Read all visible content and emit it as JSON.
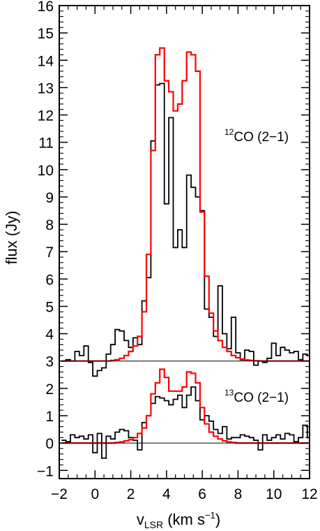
{
  "chart_data": {
    "type": "line",
    "xlabel": "v",
    "xlabel_sub": "LSR",
    "xlabel_unit_pre": " (km s",
    "xlabel_unit_sup": "−1",
    "xlabel_unit_post": ")",
    "ylabel": "flux (Jy)",
    "xlim": [
      -2,
      12
    ],
    "ylim": [
      -1.3,
      16
    ],
    "x_ticks": [
      "−2",
      "0",
      "2",
      "4",
      "6",
      "8",
      "10",
      "12"
    ],
    "x_tick_values": [
      -2,
      0,
      2,
      4,
      6,
      8,
      10,
      12
    ],
    "y_ticks": [
      "−1",
      "0",
      "1",
      "2",
      "3",
      "4",
      "5",
      "6",
      "7",
      "8",
      "9",
      "10",
      "11",
      "12",
      "13",
      "14",
      "15",
      "16"
    ],
    "y_tick_values": [
      -1,
      0,
      1,
      2,
      3,
      4,
      5,
      6,
      7,
      8,
      9,
      10,
      11,
      12,
      13,
      14,
      15,
      16
    ],
    "colors": {
      "observed": "#000000",
      "model": "#ff0000",
      "baseline": "#000000"
    },
    "annotations": [
      {
        "iso": "12",
        "text": "CO (2−1)"
      },
      {
        "iso": "13",
        "text": "CO (2−1)"
      }
    ],
    "baselines": [
      3,
      0
    ],
    "bin_width": 0.25,
    "series": [
      {
        "line": "12CO (2-1)",
        "kind": "observed",
        "x": [
          -1.75,
          -1.5,
          -1.25,
          -1.0,
          -0.75,
          -0.5,
          -0.25,
          0.0,
          0.25,
          0.5,
          0.75,
          1.0,
          1.25,
          1.5,
          1.75,
          2.0,
          2.25,
          2.5,
          2.75,
          3.0,
          3.25,
          3.5,
          3.75,
          4.0,
          4.25,
          4.5,
          4.75,
          5.0,
          5.25,
          5.5,
          5.75,
          6.0,
          6.25,
          6.5,
          6.75,
          7.0,
          7.25,
          7.5,
          7.75,
          8.0,
          8.25,
          8.5,
          8.75,
          9.0,
          9.25,
          9.5,
          9.75,
          10.0,
          10.25,
          10.5,
          10.75,
          11.0,
          11.25,
          11.5,
          11.75,
          12.0
        ],
        "y": [
          3.0,
          3.05,
          3.0,
          3.35,
          3.2,
          3.55,
          2.95,
          2.45,
          2.65,
          2.75,
          3.25,
          3.6,
          4.15,
          4.1,
          3.75,
          3.5,
          3.85,
          3.6,
          5.2,
          6.05,
          11.05,
          13.1,
          13.15,
          8.75,
          11.9,
          7.15,
          7.8,
          7.15,
          9.8,
          9.35,
          9.0,
          8.5,
          4.9,
          4.6,
          3.9,
          5.75,
          4.0,
          3.45,
          4.6,
          3.3,
          3.05,
          3.4,
          3.35,
          2.85,
          3.0,
          2.95,
          3.1,
          3.65,
          3.2,
          3.5,
          3.4,
          3.3,
          3.35,
          3.05,
          3.25,
          3.2
        ]
      },
      {
        "line": "12CO (2-1)",
        "kind": "model",
        "x": [
          -1.75,
          -1.5,
          -1.25,
          -1.0,
          -0.75,
          -0.5,
          -0.25,
          0.0,
          0.25,
          0.5,
          0.75,
          1.0,
          1.25,
          1.5,
          1.75,
          2.0,
          2.25,
          2.5,
          2.75,
          3.0,
          3.25,
          3.5,
          3.75,
          4.0,
          4.25,
          4.5,
          4.75,
          5.0,
          5.25,
          5.5,
          5.75,
          6.0,
          6.25,
          6.5,
          6.75,
          7.0,
          7.25,
          7.5,
          7.75,
          8.0,
          8.25,
          8.5,
          8.75,
          9.0,
          9.25,
          9.5,
          9.75,
          10.0,
          10.25,
          10.5,
          10.75,
          11.0,
          11.25,
          11.5,
          11.75,
          12.0
        ],
        "y": [
          3.0,
          3.0,
          3.0,
          3.0,
          3.0,
          3.0,
          3.0,
          3.0,
          3.0,
          3.0,
          3.0,
          3.02,
          3.05,
          3.1,
          3.2,
          3.35,
          3.55,
          3.9,
          4.8,
          6.9,
          10.7,
          14.2,
          14.45,
          13.25,
          12.85,
          12.15,
          12.4,
          13.25,
          14.3,
          14.2,
          13.6,
          8.45,
          6.1,
          4.75,
          4.1,
          3.75,
          3.5,
          3.35,
          3.2,
          3.12,
          3.07,
          3.04,
          3.02,
          3.01,
          3.0,
          3.0,
          3.0,
          3.0,
          3.0,
          3.0,
          3.0,
          3.0,
          3.0,
          3.0,
          3.0,
          3.0
        ]
      },
      {
        "line": "13CO (2-1)",
        "kind": "observed",
        "x": [
          -1.75,
          -1.5,
          -1.25,
          -1.0,
          -0.75,
          -0.5,
          -0.25,
          0.0,
          0.25,
          0.5,
          0.75,
          1.0,
          1.25,
          1.5,
          1.75,
          2.0,
          2.25,
          2.5,
          2.75,
          3.0,
          3.25,
          3.5,
          3.75,
          4.0,
          4.25,
          4.5,
          4.75,
          5.0,
          5.25,
          5.5,
          5.75,
          6.0,
          6.25,
          6.5,
          6.75,
          7.0,
          7.25,
          7.5,
          7.75,
          8.0,
          8.25,
          8.5,
          8.75,
          9.0,
          9.25,
          9.5,
          9.75,
          10.0,
          10.25,
          10.5,
          10.75,
          11.0,
          11.25,
          11.5,
          11.75,
          12.0
        ],
        "y": [
          0.1,
          0.05,
          0.3,
          0.2,
          0.25,
          0.15,
          0.3,
          -0.35,
          0.35,
          -0.55,
          0.25,
          0.15,
          0.4,
          0.5,
          0.45,
          0.2,
          0.1,
          -0.25,
          0.75,
          1.0,
          1.45,
          1.7,
          1.65,
          1.55,
          1.4,
          1.6,
          1.75,
          1.3,
          1.75,
          2.05,
          1.55,
          0.85,
          1.0,
          0.8,
          0.5,
          0.35,
          0.6,
          0.15,
          0.2,
          0.2,
          0.3,
          0.25,
          0.2,
          0.1,
          -0.25,
          0.3,
          0.1,
          0.2,
          0.3,
          0.15,
          0.35,
          0.3,
          0.05,
          0.2,
          0.65,
          0.2
        ]
      },
      {
        "line": "13CO (2-1)",
        "kind": "model",
        "x": [
          -1.75,
          -1.5,
          -1.25,
          -1.0,
          -0.75,
          -0.5,
          -0.25,
          0.0,
          0.25,
          0.5,
          0.75,
          1.0,
          1.25,
          1.5,
          1.75,
          2.0,
          2.25,
          2.5,
          2.75,
          3.0,
          3.25,
          3.5,
          3.75,
          4.0,
          4.25,
          4.5,
          4.75,
          5.0,
          5.25,
          5.5,
          5.75,
          6.0,
          6.25,
          6.5,
          6.75,
          7.0,
          7.25,
          7.5,
          7.75,
          8.0,
          8.25,
          8.5,
          8.75,
          9.0,
          9.25,
          9.5,
          9.75,
          10.0,
          10.25,
          10.5,
          10.75,
          11.0,
          11.25,
          11.5,
          11.75,
          12.0
        ],
        "y": [
          0.0,
          0.0,
          0.0,
          0.0,
          0.0,
          0.0,
          0.0,
          0.0,
          0.0,
          0.0,
          0.0,
          0.0,
          0.02,
          0.04,
          0.08,
          0.12,
          0.2,
          0.35,
          0.55,
          1.0,
          1.8,
          2.2,
          2.7,
          2.4,
          1.9,
          1.9,
          1.9,
          2.05,
          2.6,
          2.55,
          2.2,
          1.3,
          0.7,
          0.4,
          0.25,
          0.15,
          0.08,
          0.04,
          0.02,
          0.0,
          0.0,
          0.0,
          0.0,
          0.0,
          0.0,
          0.0,
          0.0,
          0.0,
          0.0,
          0.0,
          0.0,
          0.0,
          0.0,
          0.0,
          0.0,
          0.0
        ]
      }
    ]
  }
}
